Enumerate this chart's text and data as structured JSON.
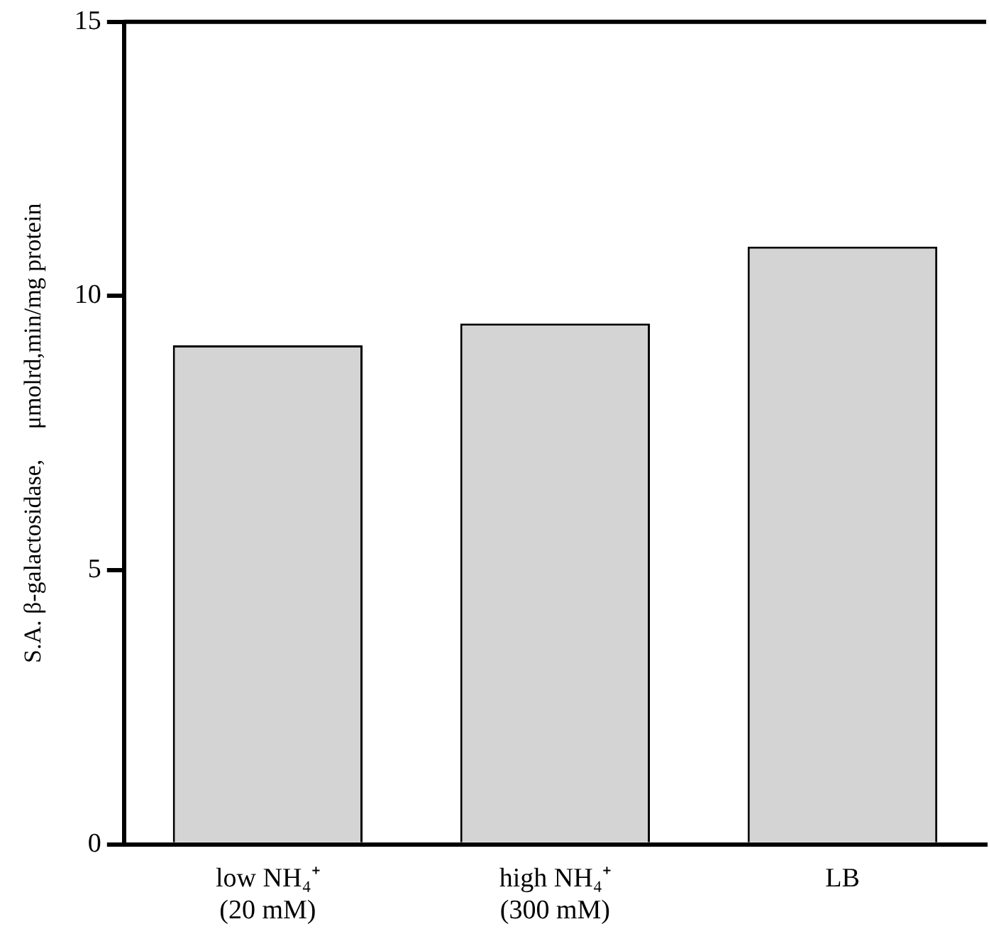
{
  "chart_data": {
    "type": "bar",
    "ylabel": "S.A. β-galactosidase,     μmolrd,min/mg protein",
    "categories": [
      "low NH₄⁺\n(20 mM)",
      "high NH₄⁺\n(300 mM)",
      "LB"
    ],
    "values": [
      9.1,
      9.5,
      10.9
    ],
    "color": "#d4d4d4",
    "ylim": [
      0,
      15
    ],
    "yticks": [
      0,
      5,
      10,
      15
    ],
    "grid": false,
    "legend": false
  }
}
